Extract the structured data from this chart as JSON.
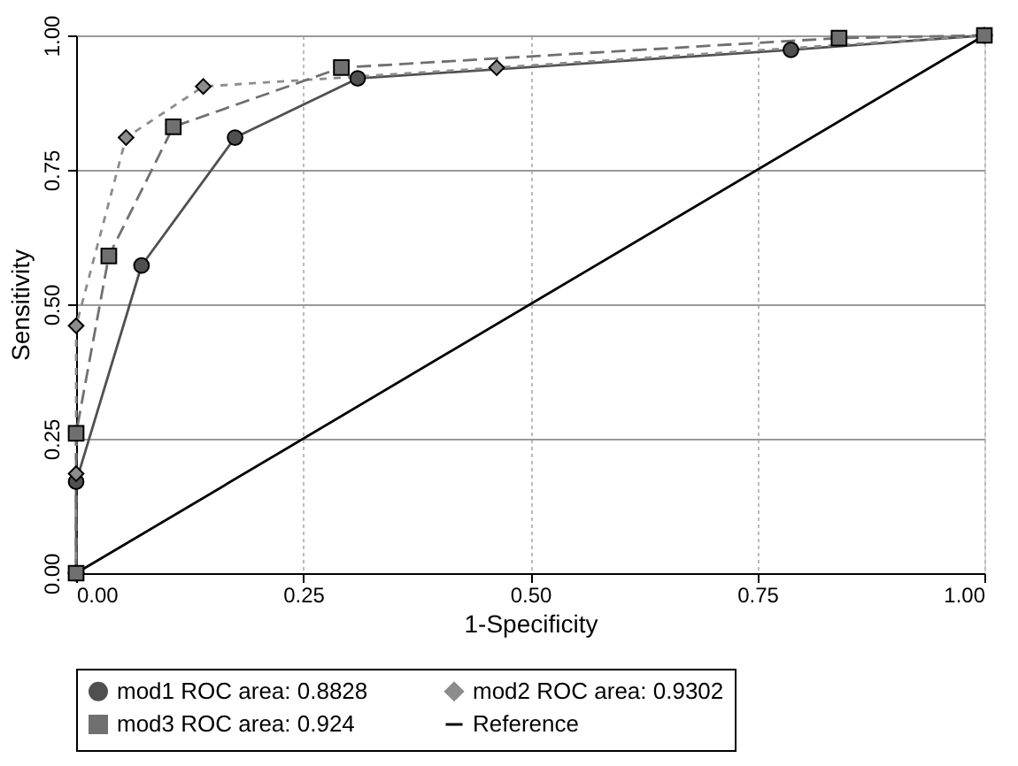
{
  "chart_data": {
    "type": "line",
    "xlabel": "1-Specificity",
    "ylabel": "Sensitivity",
    "xlim": [
      0,
      1
    ],
    "ylim": [
      0,
      1
    ],
    "xticks": [
      {
        "value": 0,
        "label": "0.00"
      },
      {
        "value": 0.25,
        "label": "0.25"
      },
      {
        "value": 0.5,
        "label": "0.50"
      },
      {
        "value": 0.75,
        "label": "0.75"
      },
      {
        "value": 1,
        "label": "1.00"
      }
    ],
    "yticks": [
      {
        "value": 0,
        "label": "0.00"
      },
      {
        "value": 0.25,
        "label": "0.25"
      },
      {
        "value": 0.5,
        "label": "0.50"
      },
      {
        "value": 0.75,
        "label": "0.75"
      },
      {
        "value": 1,
        "label": "1.00"
      }
    ],
    "grid": true,
    "legend": "bottom",
    "series": [
      {
        "name": "mod1 ROC area: 0.8828",
        "color": "#505050",
        "marker": "circle",
        "line_style": "solid",
        "x": [
          0,
          0,
          0.072,
          0.175,
          0.31,
          0.787,
          1
        ],
        "values": [
          0,
          0.17,
          0.572,
          0.81,
          0.92,
          0.973,
          1
        ]
      },
      {
        "name": "mod2 ROC area: 0.9302",
        "color": "#8c8c8c",
        "marker": "diamond",
        "line_style": "dotted",
        "x": [
          0,
          0,
          0,
          0.055,
          0.14,
          0.463,
          1
        ],
        "values": [
          0,
          0.185,
          0.46,
          0.81,
          0.905,
          0.94,
          1
        ]
      },
      {
        "name": "mod3 ROC area: 0.924",
        "color": "#707070",
        "marker": "square",
        "line_style": "dashed",
        "x": [
          0,
          0,
          0.036,
          0.107,
          0.292,
          0.84,
          1
        ],
        "values": [
          0,
          0.26,
          0.59,
          0.83,
          0.94,
          0.995,
          1
        ]
      },
      {
        "name": "Reference",
        "color": "#000000",
        "marker": "none",
        "line_style": "solid",
        "x": [
          0,
          1
        ],
        "values": [
          0,
          1
        ]
      }
    ]
  }
}
